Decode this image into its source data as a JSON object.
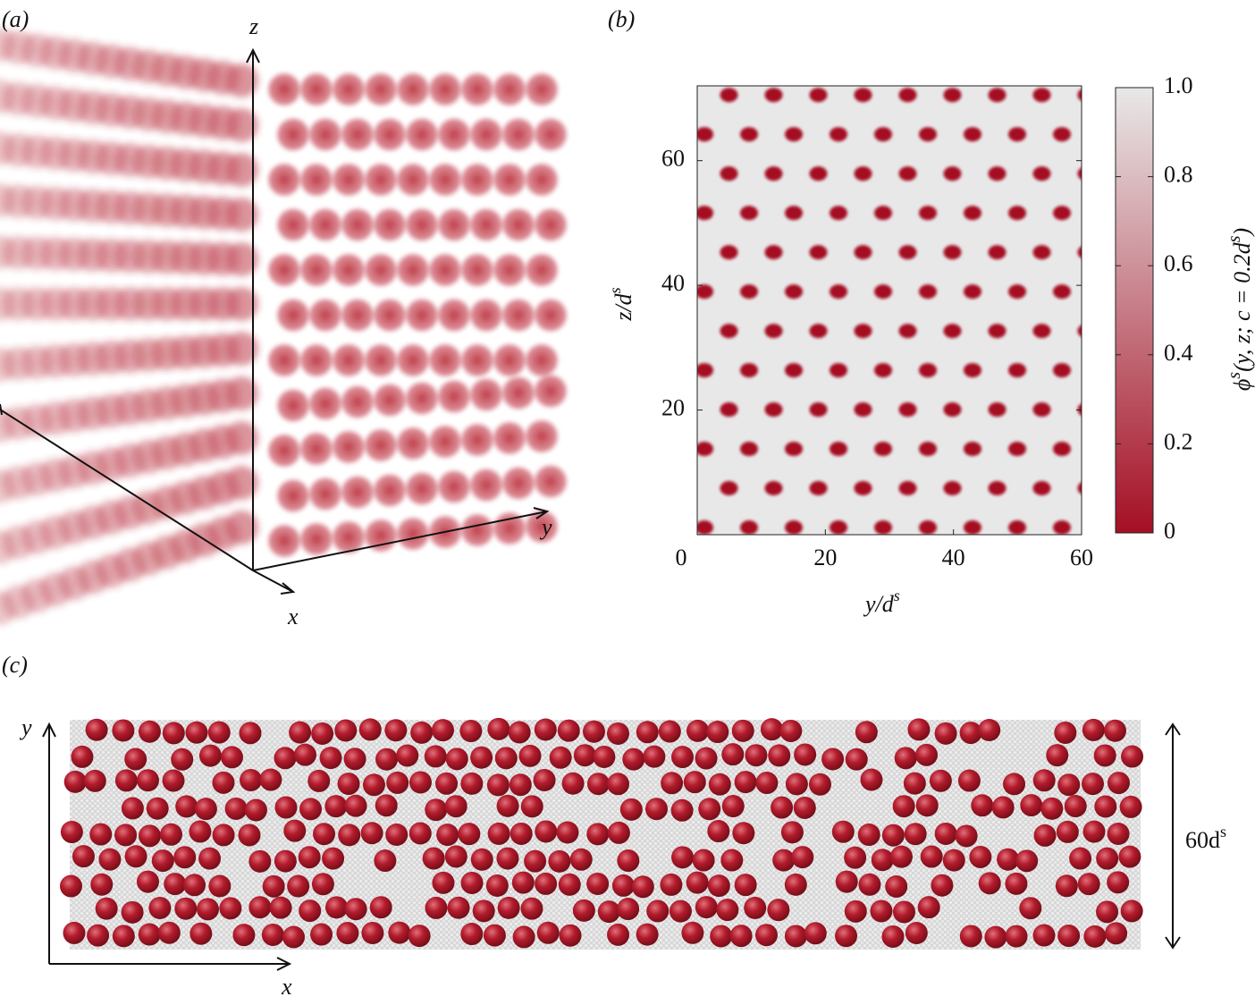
{
  "panel_labels": [
    "(a)",
    "(b)",
    "(c)"
  ],
  "panel_a": {
    "x_axis": "x",
    "y_axis": "y",
    "z_axis": "z"
  },
  "chart_data": {
    "type": "heatmap",
    "x_label": {
      "text": "y/d",
      "sup": "s"
    },
    "y_label": {
      "text": "z/d",
      "sup": "s"
    },
    "xlim": [
      0,
      60
    ],
    "ylim": [
      0,
      72
    ],
    "xticks": [
      0,
      20,
      40,
      60
    ],
    "yticks": [
      20,
      40,
      60
    ],
    "colorbar": {
      "label_parts": [
        {
          "text": "ϕ"
        },
        {
          "sup": "s"
        },
        {
          "text": "(y, z; c = 0.2d"
        },
        {
          "sup": "s"
        },
        {
          "text": ")"
        }
      ],
      "lim": [
        0,
        1
      ],
      "ticks": [
        0,
        0.2,
        0.4,
        0.6,
        0.8,
        {
          "value": 1,
          "label": "1.0"
        }
      ],
      "colors": [
        "#a50f24",
        "#e8e8e8"
      ]
    }
  },
  "panel_c": {
    "x_axis": "x",
    "y_axis": "y",
    "height_label": {
      "text": "60d",
      "sup": "s"
    }
  }
}
